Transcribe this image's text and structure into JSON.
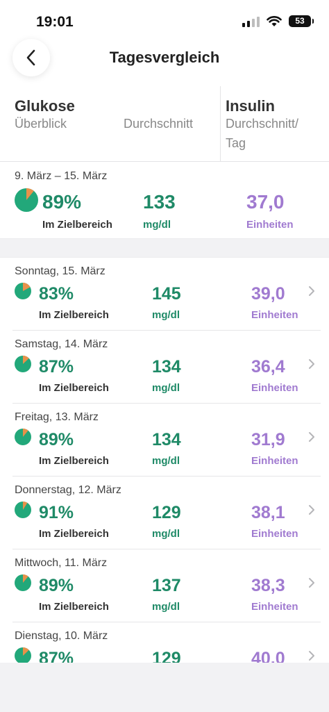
{
  "status": {
    "time": "19:01",
    "battery": "53"
  },
  "nav": {
    "title": "Tagesvergleich",
    "back_icon": "chevron-left-icon"
  },
  "header": {
    "glukose": "Glukose",
    "ueberblick": "Überblick",
    "durchschnitt": "Durchschnitt",
    "insulin": "Insulin",
    "insulin_durchschnitt": "Durchschnitt/",
    "tag": "Tag"
  },
  "summary": {
    "range": "9. März – 15. März",
    "percent": "89%",
    "percent_value": 89,
    "percent_label": "Im Zielbereich",
    "avg": "133",
    "avg_unit": "mg/dl",
    "insulin": "37,0",
    "insulin_unit": "Einheiten"
  },
  "days": [
    {
      "date": "Sonntag, 15. März",
      "percent": "83%",
      "percent_value": 83,
      "percent_label": "Im Zielbereich",
      "avg": "145",
      "avg_unit": "mg/dl",
      "insulin": "39,0",
      "insulin_unit": "Einheiten"
    },
    {
      "date": "Samstag, 14. März",
      "percent": "87%",
      "percent_value": 87,
      "percent_label": "Im Zielbereich",
      "avg": "134",
      "avg_unit": "mg/dl",
      "insulin": "36,4",
      "insulin_unit": "Einheiten"
    },
    {
      "date": "Freitag, 13. März",
      "percent": "89%",
      "percent_value": 89,
      "percent_label": "Im Zielbereich",
      "avg": "134",
      "avg_unit": "mg/dl",
      "insulin": "31,9",
      "insulin_unit": "Einheiten"
    },
    {
      "date": "Donnerstag, 12. März",
      "percent": "91%",
      "percent_value": 91,
      "percent_label": "Im Zielbereich",
      "avg": "129",
      "avg_unit": "mg/dl",
      "insulin": "38,1",
      "insulin_unit": "Einheiten"
    },
    {
      "date": "Mittwoch, 11. März",
      "percent": "89%",
      "percent_value": 89,
      "percent_label": "Im Zielbereich",
      "avg": "137",
      "avg_unit": "mg/dl",
      "insulin": "38,3",
      "insulin_unit": "Einheiten"
    },
    {
      "date": "Dienstag, 10. März",
      "percent": "87%",
      "percent_value": 87,
      "avg": "129",
      "insulin": "40,0"
    }
  ],
  "colors": {
    "green": "#1f8a67",
    "pie_green": "#22a87a",
    "orange": "#e8914a",
    "purple": "#a07ad0"
  }
}
